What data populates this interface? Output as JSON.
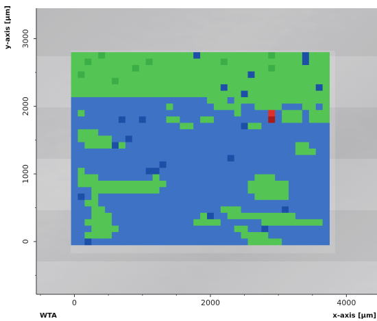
{
  "chart_data": {
    "type": "heatmap",
    "title": "",
    "corner_label": "WTA",
    "xlabel": "x-axis [µm]",
    "ylabel": "y-axis [µm]",
    "xlim": [
      -560,
      4450
    ],
    "ylim": [
      -780,
      3450
    ],
    "x_ticks": [
      0,
      2000,
      4000
    ],
    "y_ticks": [
      0,
      1000,
      2000,
      3000
    ],
    "x_tick_labels": [
      "0",
      "2000",
      "4000"
    ],
    "y_tick_labels": [
      "0",
      "1000",
      "2000",
      "3000"
    ],
    "background": "microscope-image",
    "grid": false,
    "map_extent": {
      "x": [
        -50,
        3750
      ],
      "y": [
        -50,
        2800
      ]
    },
    "grid_size": {
      "cols": 38,
      "rows": 30
    },
    "colors": {
      "G": "#54c454",
      "g": "#3cae48",
      "B": "#3e72c4",
      "b": "#1e4fa8",
      "t": "#2e8c8e",
      "R": "#e0302a",
      "r": "#a81c1c"
    },
    "cells": [
      "GGGGgGGGGGGGGGGGGGbGGGGGGGGGGgGGGGbGGG",
      "GGgGGGGGGGGgGGGGGGGGGGgGGGGGGGGGGGbGGG",
      "GGGGGGGGGgGGGGGGGGGGGGGGGGGGGgGGGGGGGG",
      "GgGGGGGGGGGGGGGGGGGGGGGGGGbGGGGGGGGGGG",
      "GGGGGGgGGGGGGGGGGGGGGGGGGGGGGGGGGGGGGG",
      "GGGGGGGGGGGGGGGGGGGGGGbGGGGGGGGGGGGGbG",
      "GGGGGGGGGGGGGGGGGGGGGGGGGbGGGGGGGGGGGG",
      "BBBBBBBBBBBBBBBBBBBBGGGBGGGGGGGGGGGGGG",
      "BBBBBBBBBBBBBBGBBBBBBGGGGBBGGGGBBBGGBG",
      "BGBBBBBBBBBBBBBBBBBBBBBBGBBBBRBGGGBGGG",
      "BBBBBBBbBBbBBBGGBBBGGBBBBBBBBrBGGGBGGG",
      "BBBBBBBBBBBBBBBBGGBBBBBBBbGGBBBBBBBBBB",
      "BGGGBBBBBBBBBBBBBBBBBBBBBBBBBBBBBBBBBB",
      "BGGGGGBBbBBBBBBBBBBBBBBBBBBBBBBBBBBBBB",
      "BBGGGGbGBBBBBBBBBBBBBBBBBBBBBBBBBGGBBB",
      "BBBBBBBBBBBBBBBBBBBBBBBBBBBBBBBBBGGGBB",
      "BBBBBBBBBBBBBBBBBBBBBBBbBBBBBBBBBBBBBB",
      "BBBBBBBBBBBBBbBBBBBBBBBBBBBBBBBBBBBBBB",
      "BGBBBBBBBBBbbBBBBBBBBBBBBBBBBBBBBBBBBB",
      "BGGGBBBBBBBBGBBBBBBBBBBBBBBGGGBBBBBBBB",
      "BGGGGGGGGGGGGGBBBBBBBBBBBBGGGGGGBBBBBB",
      "BBBGGGGGGGGGGBBBBBBBBBBBBBGGGGGGBBBBBB",
      "BbBGBBBBBBBBBBBBBBBBBBBBBBBGGGGGBBBBBB",
      "BBGGBBBBBBBBBBBBBBBBBBBBBBBBBBBBBBBBBB",
      "BBBGGBBBBBBBBBBBBBBBBBGGGBBBBBBbBBBBBB",
      "BBBGGGBBBBBBBBBBBBBGbBBGGGGGGGGGGBBBBB",
      "BBGGGGBBBBBBBBBBBBGGGGBBBBBBGGGGGGGGGB",
      "BBBGGGGBBBBBBBBBBBBBBBBBGGBBbBBBBBBBBB",
      "BBGGGGBBBBBBBBBBBBBBBBBBBGGGGBBBBBBBBB",
      "BBbBBBBBBBBBBBBBBBBBBBBBBBGGGGGBBBBBBB"
    ]
  }
}
